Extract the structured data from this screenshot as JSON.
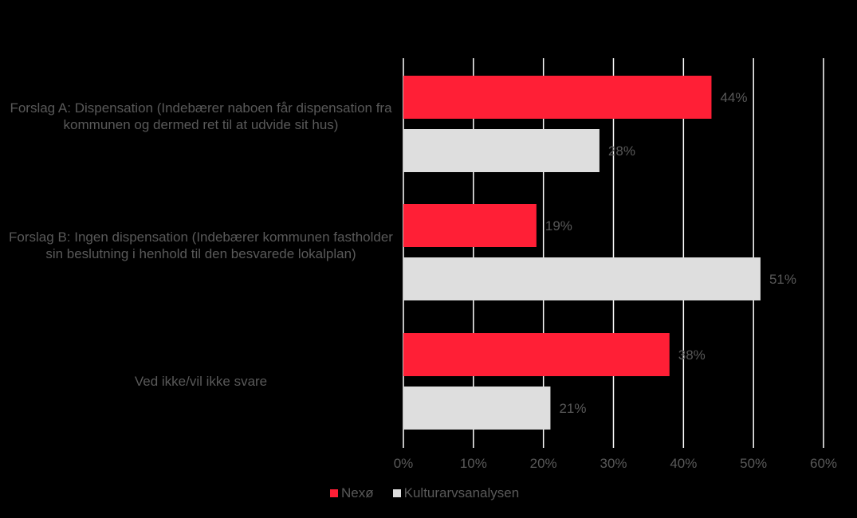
{
  "chart_data": {
    "type": "bar",
    "orientation": "horizontal",
    "categories": [
      "Forslag A: Dispensation (Indebærer naboen får dispensation fra kommunen og dermed ret til at udvide sit hus)",
      "Forslag B: Ingen dispensation (Indebærer kommunen fastholder sin beslutning i henhold til den besvarede lokalplan)",
      "Ved ikke/vil ikke svare"
    ],
    "series": [
      {
        "name": "Nexø",
        "values": [
          44,
          19,
          38
        ],
        "color": "#ff1f36"
      },
      {
        "name": "Kulturarvsanalysen",
        "values": [
          28,
          51,
          21
        ],
        "color": "#dedede"
      }
    ],
    "value_suffix": "%",
    "xlim": [
      0,
      60
    ],
    "xticks": [
      "0%",
      "10%",
      "20%",
      "30%",
      "40%",
      "50%",
      "60%"
    ],
    "grid": true,
    "legend_position": "bottom",
    "background": "#000000",
    "text_color": "#595959",
    "grid_color": "#ffffff"
  }
}
